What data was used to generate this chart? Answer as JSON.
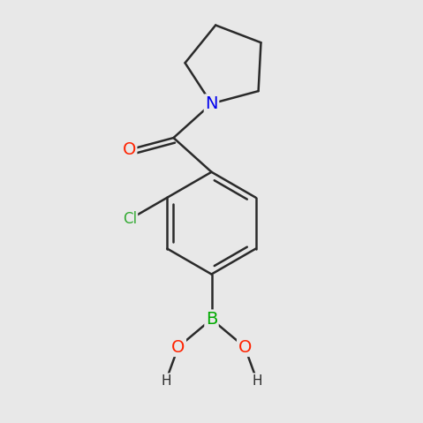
{
  "bg_color": "#e8e8e8",
  "bond_color": "#2a2a2a",
  "bond_width": 1.8,
  "atom_colors": {
    "O": "#ff2200",
    "N": "#0000ee",
    "B": "#00aa00",
    "Cl": "#33aa33",
    "C": "#2a2a2a",
    "H": "#2a2a2a"
  },
  "font_size_atom": 14,
  "font_size_cl": 12,
  "font_size_h": 11
}
